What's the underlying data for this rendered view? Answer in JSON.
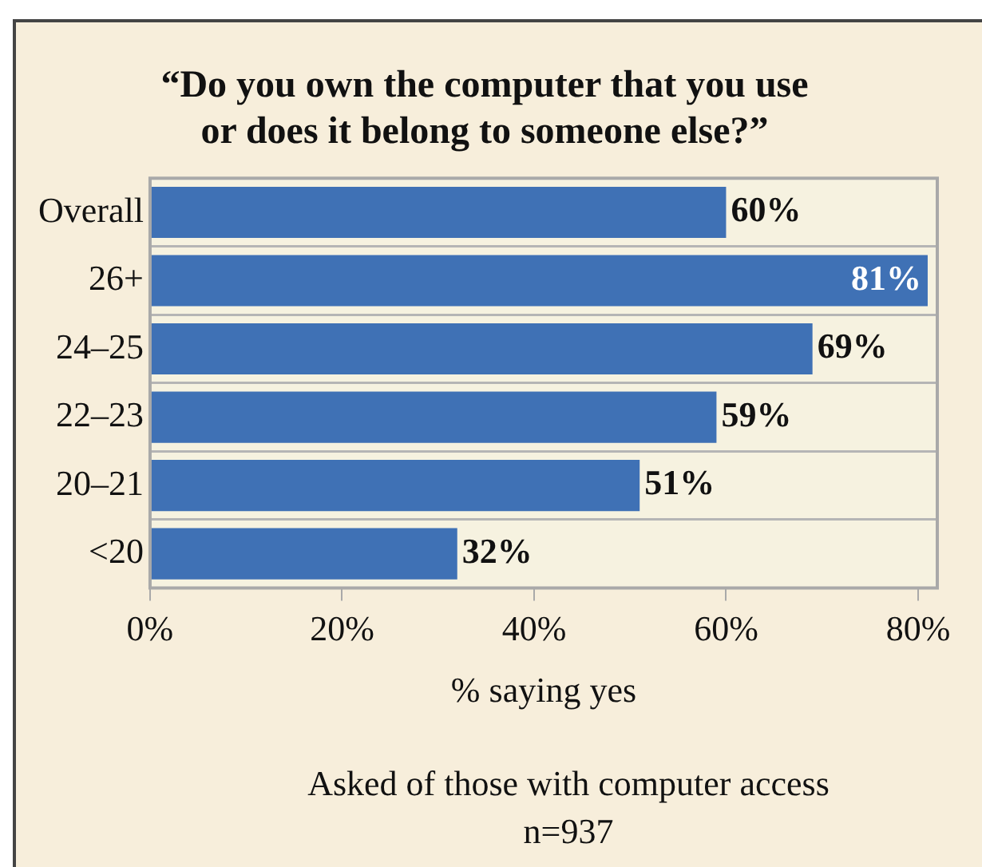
{
  "chart_data": {
    "type": "bar",
    "orientation": "horizontal",
    "title": [
      "“Do you own the computer that you use",
      "or does it belong to someone else?”"
    ],
    "categories": [
      "Overall",
      "26+",
      "24–25",
      "22–23",
      "20–21",
      "<20"
    ],
    "values": [
      60,
      81,
      69,
      59,
      51,
      32
    ],
    "value_labels": [
      "60%",
      "81%",
      "69%",
      "59%",
      "51%",
      "32%"
    ],
    "color": "#3f71b5",
    "xlabel": "% saying yes",
    "xlim": [
      0,
      82
    ],
    "xticks": [
      {
        "value": 0,
        "label": "0%"
      },
      {
        "value": 20,
        "label": "20%"
      },
      {
        "value": 40,
        "label": "40%"
      },
      {
        "value": 60,
        "label": "60%"
      },
      {
        "value": 80,
        "label": "80%"
      }
    ],
    "grid": "y",
    "annotations": [
      "Asked of those with computer access",
      "n=937"
    ]
  }
}
